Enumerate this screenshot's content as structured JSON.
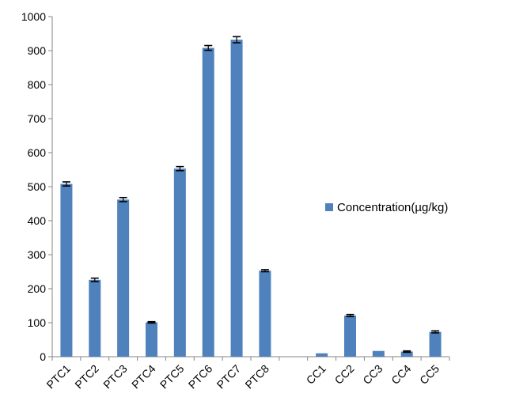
{
  "chart_data": {
    "type": "bar",
    "categories": [
      "PTC1",
      "PTC2",
      "PTC3",
      "PTC4",
      "PTC5",
      "PTC6",
      "PTC7",
      "PTC8",
      "",
      "CC1",
      "CC2",
      "CC3",
      "CC4",
      "CC5"
    ],
    "series": [
      {
        "name": "Concentration(µg/kg)",
        "values": [
          508,
          226,
          462,
          101,
          553,
          908,
          932,
          253,
          null,
          10,
          121,
          17,
          15,
          73
        ],
        "errors": [
          6,
          5,
          6,
          2,
          6,
          7,
          9,
          3,
          null,
          0,
          3,
          0,
          2,
          3
        ],
        "color": "#4f81bd"
      }
    ],
    "ylim": [
      0,
      1000
    ],
    "yticks": [
      0,
      100,
      200,
      300,
      400,
      500,
      600,
      700,
      800,
      900,
      1000
    ],
    "xlabel": "",
    "ylabel": "",
    "title": "",
    "grid": false,
    "legend_position": "right"
  }
}
